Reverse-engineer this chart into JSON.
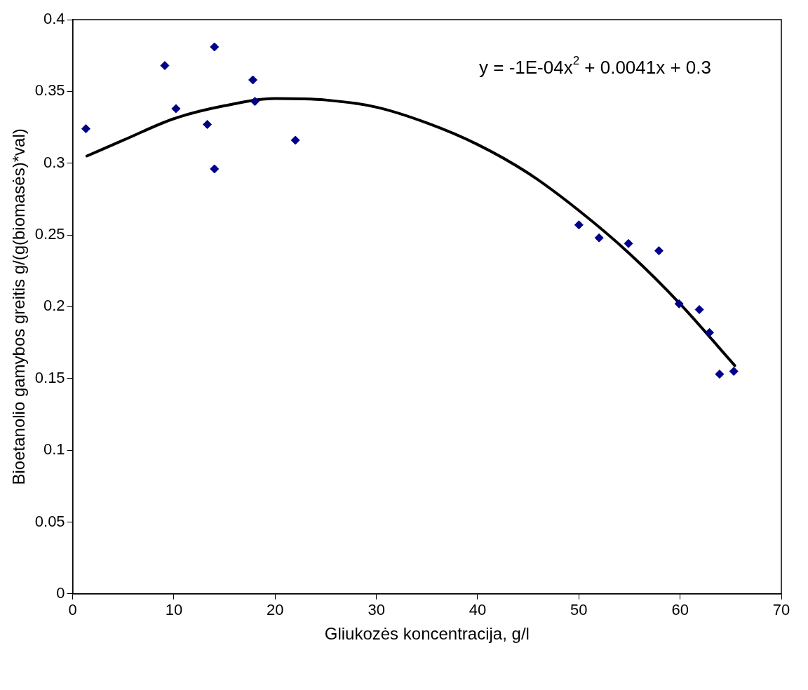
{
  "chart_data": {
    "type": "scatter",
    "xlabel": "Gliukozės koncentracija, g/l",
    "ylabel": "Bioetanolio gamybos greitis g/(g(biomasės)*val)",
    "xlim": [
      0,
      70
    ],
    "xticks": [
      0,
      10,
      20,
      30,
      40,
      50,
      60,
      70
    ],
    "ylim": [
      0,
      0.4
    ],
    "yticks": [
      0,
      0.05,
      0.1,
      0.15,
      0.2,
      0.25,
      0.3,
      0.35,
      0.4
    ],
    "grid": false,
    "legend": false,
    "marker": "diamond",
    "annotations": [
      "y = -1E-04x$^{2}$ + 0.0041x + 0.3"
    ],
    "series": [
      {
        "color": "#00008b",
        "x": [
          1.3,
          9.1,
          10.2,
          13.3,
          14,
          14,
          17.8,
          18,
          22,
          50,
          52,
          54.9,
          57.9,
          59.9,
          61.9,
          62.9,
          63.9,
          65.3
        ],
        "values": [
          0.324,
          0.368,
          0.338,
          0.327,
          0.381,
          0.296,
          0.358,
          0.343,
          0.316,
          0.257,
          0.248,
          0.244,
          0.239,
          0.202,
          0.198,
          0.182,
          0.153,
          0.155
        ]
      },
      {
        "type": "line",
        "color": "#000000",
        "marker": "none",
        "line_style": "solid",
        "x": [
          1.4,
          5,
          10,
          15,
          20,
          25,
          30,
          35,
          40,
          45,
          50,
          55,
          60,
          65.4
        ],
        "values": [
          0.305,
          0.316,
          0.331,
          0.34,
          0.345,
          0.344,
          0.339,
          0.328,
          0.313,
          0.293,
          0.267,
          0.237,
          0.202,
          0.159
        ]
      }
    ]
  }
}
